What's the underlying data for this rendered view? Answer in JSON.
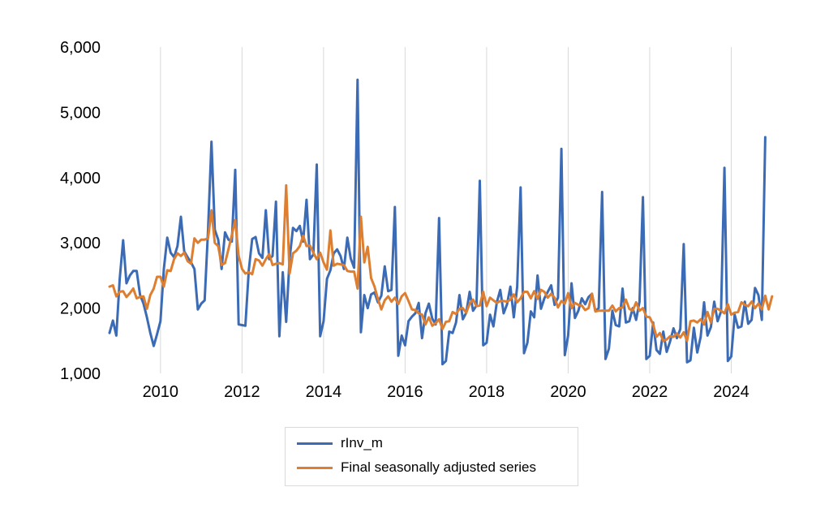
{
  "chart_data": {
    "type": "line",
    "title": "",
    "xlabel": "",
    "ylabel": "",
    "x_start": "2008-10",
    "x_step": "month",
    "xlim": [
      "2008-10",
      "2024-09"
    ],
    "ylim": [
      1000,
      6000
    ],
    "x_ticks": [
      "2010",
      "2012",
      "2014",
      "2016",
      "2018",
      "2020",
      "2022",
      "2024"
    ],
    "y_ticks": [
      "1,000",
      "2,000",
      "3,000",
      "4,000",
      "5,000",
      "6,000"
    ],
    "grid": "vertical",
    "legend_position": "bottom",
    "series": [
      {
        "name": "rInv_m",
        "color": "#3c6bb5",
        "values": [
          1620,
          1810,
          1580,
          2450,
          3040,
          2380,
          2500,
          2570,
          2570,
          2200,
          2070,
          1860,
          1620,
          1420,
          1600,
          1800,
          2600,
          3080,
          2850,
          2780,
          2950,
          3400,
          2870,
          2780,
          2700,
          2600,
          1980,
          2070,
          2120,
          3200,
          4550,
          3200,
          3050,
          2600,
          3160,
          3050,
          3020,
          4120,
          1750,
          1740,
          1730,
          2580,
          3060,
          3090,
          2840,
          2770,
          3500,
          2750,
          2800,
          3630,
          1570,
          2550,
          1790,
          2750,
          3230,
          3180,
          3260,
          3020,
          3660,
          2750,
          2820,
          4200,
          1570,
          1800,
          2450,
          2580,
          2840,
          2900,
          2800,
          2600,
          3080,
          2760,
          2620,
          5500,
          1630,
          2200,
          2000,
          2210,
          2240,
          2090,
          2190,
          2640,
          2260,
          2280,
          3550,
          1270,
          1580,
          1430,
          1800,
          1870,
          1920,
          2080,
          1540,
          1920,
          2070,
          1840,
          1750,
          3380,
          1140,
          1190,
          1640,
          1620,
          1780,
          2200,
          1830,
          1930,
          2250,
          1960,
          2040,
          3950,
          1430,
          1470,
          1900,
          1720,
          2090,
          2280,
          1920,
          2060,
          2330,
          1860,
          2330,
          3850,
          1310,
          1470,
          1950,
          1860,
          2500,
          1990,
          2150,
          2250,
          2350,
          2050,
          2160,
          4440,
          1280,
          1580,
          2380,
          1850,
          1960,
          2150,
          2060,
          2170,
          2220,
          1950,
          2000,
          3780,
          1220,
          1380,
          1960,
          1740,
          1720,
          2300,
          1780,
          1800,
          2000,
          1820,
          2100,
          3700,
          1220,
          1270,
          1780,
          1360,
          1300,
          1640,
          1330,
          1490,
          1690,
          1540,
          1680,
          2980,
          1170,
          1200,
          1700,
          1320,
          1560,
          2090,
          1580,
          1710,
          2100,
          1800,
          1950,
          4150,
          1190,
          1260,
          1900,
          1700,
          1720,
          2100,
          1760,
          1820,
          2310,
          2200,
          1820,
          4620
        ]
      },
      {
        "name": "Final seasonally adjusted series",
        "color": "#dd7e30",
        "values": [
          2330,
          2350,
          2180,
          2250,
          2260,
          2170,
          2230,
          2300,
          2150,
          2170,
          2180,
          1990,
          2200,
          2300,
          2480,
          2480,
          2330,
          2580,
          2570,
          2750,
          2840,
          2800,
          2850,
          2720,
          2680,
          3070,
          3000,
          3050,
          3050,
          3070,
          3500,
          3000,
          2950,
          2660,
          2690,
          2900,
          3120,
          3350,
          2800,
          2600,
          2530,
          2550,
          2520,
          2750,
          2730,
          2650,
          2750,
          2830,
          2660,
          2680,
          2690,
          2670,
          3880,
          2530,
          2840,
          2880,
          2950,
          3110,
          2950,
          2960,
          2850,
          2750,
          2850,
          2700,
          2590,
          3190,
          2650,
          2680,
          2670,
          2660,
          2570,
          2560,
          2560,
          2300,
          3400,
          2700,
          2940,
          2460,
          2330,
          2140,
          1980,
          2120,
          2180,
          2100,
          2160,
          2060,
          2180,
          2230,
          2110,
          1980,
          1970,
          1920,
          1900,
          1750,
          1860,
          1730,
          1770,
          1830,
          1680,
          1790,
          1800,
          1940,
          1910,
          1990,
          2000,
          1930,
          2070,
          2130,
          2030,
          2040,
          2250,
          2030,
          2160,
          2120,
          2080,
          2110,
          2110,
          2100,
          2130,
          2210,
          2090,
          2150,
          2250,
          2250,
          2150,
          2260,
          2140,
          2280,
          2250,
          2160,
          2220,
          2160,
          2010,
          2110,
          2070,
          2230,
          2000,
          2080,
          2050,
          2040,
          1970,
          2000,
          2220,
          1950,
          1960,
          1960,
          1960,
          1960,
          2040,
          1950,
          2000,
          2010,
          2130,
          1990,
          1960,
          2090,
          1960,
          2000,
          1870,
          1860,
          1750,
          1560,
          1620,
          1500,
          1520,
          1570,
          1560,
          1610,
          1550,
          1630,
          1500,
          1800,
          1810,
          1780,
          1830,
          1750,
          1940,
          1780,
          1990,
          1990,
          1960,
          1920,
          2060,
          1900,
          1930,
          1940,
          2090,
          2050,
          2030,
          2100,
          2000,
          2070,
          1980,
          2190,
          1980,
          2180
        ]
      }
    ]
  }
}
